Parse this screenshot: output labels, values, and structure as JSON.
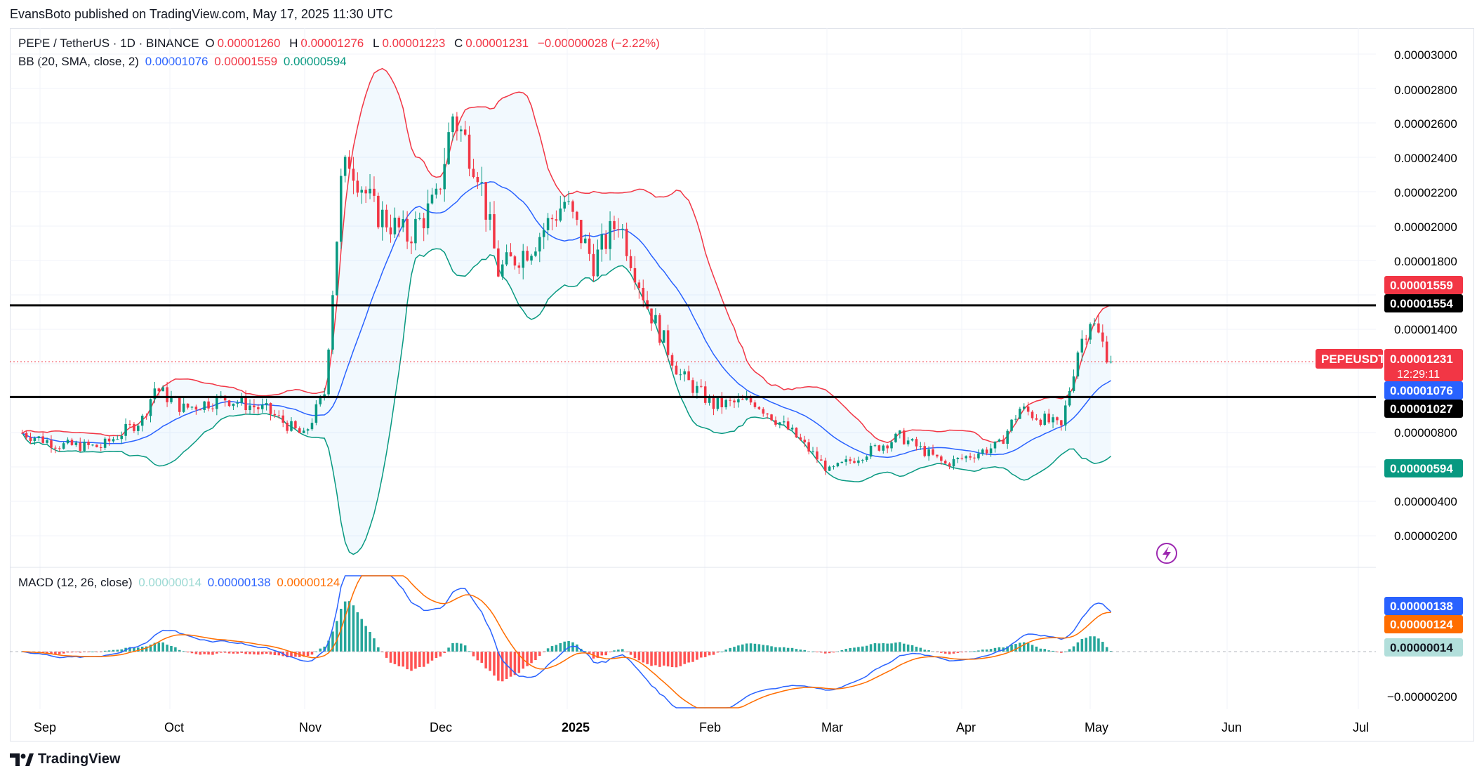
{
  "header": {
    "publisher": "EvansBoto published on TradingView.com, May 17, 2025 11:30 UTC"
  },
  "legend": {
    "symbol": "PEPE / TetherUS · 1D · BINANCE",
    "o_label": "O",
    "o": "0.00001260",
    "h_label": "H",
    "h": "0.00001276",
    "l_label": "L",
    "l": "0.00001223",
    "c_label": "C",
    "c": "0.00001231",
    "change": "−0.00000028 (−2.22%)",
    "bb_label": "BB (20, SMA, close, 2)",
    "bb_mid": "0.00001076",
    "bb_upper": "0.00001559",
    "bb_lower": "0.00000594",
    "macd_label": "MACD (12, 26, close)",
    "macd_hist": "0.00000014",
    "macd_line": "0.00000138",
    "macd_signal": "0.00000124"
  },
  "footer": {
    "brand": "TradingView"
  },
  "colors": {
    "up": "#089981",
    "down": "#f23645",
    "bb_upper": "#f23645",
    "bb_lower": "#089981",
    "bb_mid": "#2962ff",
    "macd": "#2962ff",
    "signal": "#ff6d00",
    "hist_up": "#26a69a",
    "hist_down": "#ff5252"
  },
  "chart_data": [
    {
      "type": "candlestick",
      "symbol": "PEPEUSDT",
      "x": [
        "Sep",
        "Oct",
        "Nov",
        "Dec",
        "2025",
        "Feb",
        "Mar",
        "Apr",
        "May",
        "Jun",
        "Jul"
      ],
      "y_ticks": [
        "0.00003000",
        "0.00002800",
        "0.00002600",
        "0.00002400",
        "0.00002200",
        "0.00002000",
        "0.00001800",
        "0.00001400",
        "0.00000800",
        "0.00000400",
        "0.00000200"
      ],
      "ylim": [
        1.2e-06,
        3.1e-06
      ],
      "approx_close_path": [
        [
          "2024-08-27",
          8.2e-06
        ],
        [
          "2024-09-05",
          7.5e-06
        ],
        [
          "2024-09-15",
          7.4e-06
        ],
        [
          "2024-09-25",
          9e-06
        ],
        [
          "2024-09-28",
          1.08e-05
        ],
        [
          "2024-10-05",
          9.6e-06
        ],
        [
          "2024-10-15",
          1.02e-05
        ],
        [
          "2024-10-25",
          9.5e-06
        ],
        [
          "2024-11-03",
          8e-06
        ],
        [
          "2024-11-08",
          1.05e-05
        ],
        [
          "2024-11-12",
          2.25e-05
        ],
        [
          "2024-11-14",
          2.4e-05
        ],
        [
          "2024-11-20",
          2.1e-05
        ],
        [
          "2024-11-28",
          1.95e-05
        ],
        [
          "2024-12-05",
          2.15e-05
        ],
        [
          "2024-12-09",
          2.65e-05
        ],
        [
          "2024-12-15",
          2.35e-05
        ],
        [
          "2024-12-20",
          1.75e-05
        ],
        [
          "2024-12-28",
          1.9e-05
        ],
        [
          "2025-01-05",
          2.15e-05
        ],
        [
          "2025-01-12",
          1.8e-05
        ],
        [
          "2025-01-18",
          2.05e-05
        ],
        [
          "2025-01-25",
          1.55e-05
        ],
        [
          "2025-02-02",
          1.15e-05
        ],
        [
          "2025-02-10",
          9.8e-06
        ],
        [
          "2025-02-20",
          1e-05
        ],
        [
          "2025-03-01",
          8.2e-06
        ],
        [
          "2025-03-10",
          6e-06
        ],
        [
          "2025-03-20",
          7.2e-06
        ],
        [
          "2025-03-27",
          8e-06
        ],
        [
          "2025-04-07",
          6.4e-06
        ],
        [
          "2025-04-20",
          7.5e-06
        ],
        [
          "2025-04-25",
          9.6e-06
        ],
        [
          "2025-05-05",
          8.5e-06
        ],
        [
          "2025-05-09",
          1.3e-05
        ],
        [
          "2025-05-12",
          1.48e-05
        ],
        [
          "2025-05-17",
          1.23e-05
        ]
      ],
      "bb_upper_last": 1.559e-05,
      "bb_mid_last": 1.076e-05,
      "bb_lower_last": 5.94e-06,
      "horizontal_lines": [
        1.554e-05,
        1.027e-05
      ],
      "price_labels": {
        "upper": "0.00001559",
        "resistance": "0.00001554",
        "symbol_tag": "PEPEUSDT",
        "last": "0.00001231",
        "countdown": "12:29:11",
        "mid": "0.00001076",
        "support": "0.00001027",
        "lower": "0.00000594"
      }
    },
    {
      "type": "macd",
      "y_ticks": [
        "−0.00000200"
      ],
      "values": {
        "macd": 1.38e-06,
        "signal": 1.24e-06,
        "histogram": 1.4e-07
      },
      "price_labels": {
        "macd": "0.00000138",
        "signal": "0.00000124",
        "hist": "0.00000014"
      }
    }
  ]
}
